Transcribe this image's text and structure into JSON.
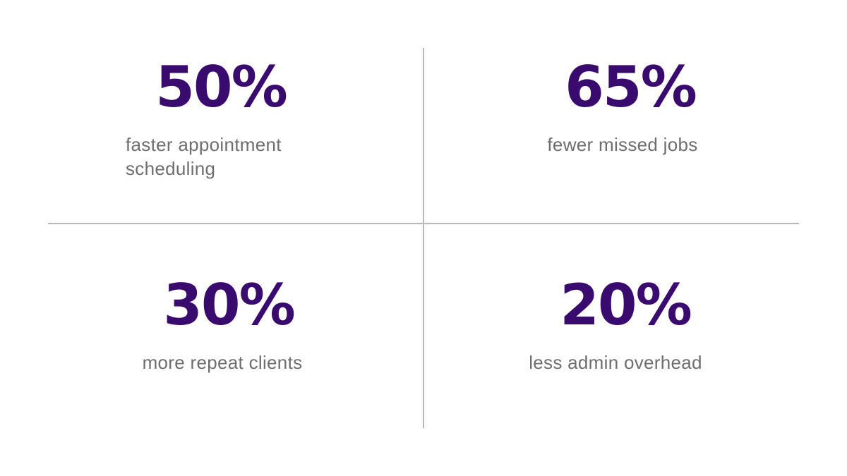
{
  "stats": [
    {
      "value": "50%",
      "label_line1": "faster appointment",
      "label_line2": "scheduling"
    },
    {
      "value": "65%",
      "label": "fewer missed jobs"
    },
    {
      "value": "30%",
      "label": "more repeat clients"
    },
    {
      "value": "20%",
      "label": "less admin overhead"
    }
  ],
  "colors": {
    "value_text": "#3a0b6f",
    "label_text": "#6e6e6e",
    "divider": "#b8b8b8",
    "background": "#ffffff"
  }
}
